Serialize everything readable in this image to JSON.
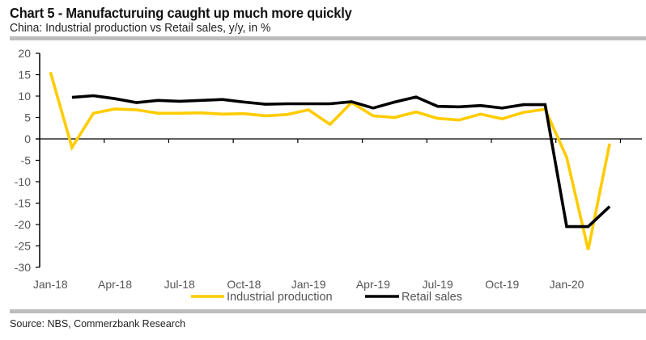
{
  "header": {
    "title": "Chart 5 - Manufacturuing caught up much more quickly",
    "subtitle": "China: Industrial production vs Retail sales, y/y, in %"
  },
  "footer": {
    "source": "Source: NBS, Commerzbank Research"
  },
  "chart_data": {
    "type": "line",
    "title": "Chart 5 - Manufacturuing caught up much more quickly",
    "subtitle": "China: Industrial production vs Retail sales, y/y, in %",
    "xlabel": "",
    "ylabel": "",
    "ylim": [
      -30,
      20
    ],
    "yticks": [
      20,
      15,
      10,
      5,
      0,
      -5,
      -10,
      -15,
      -20,
      -25,
      -30
    ],
    "x": [
      "Jan-18",
      "Feb-18",
      "Mar-18",
      "Apr-18",
      "May-18",
      "Jun-18",
      "Jul-18",
      "Aug-18",
      "Sep-18",
      "Oct-18",
      "Nov-18",
      "Dec-18",
      "Jan-19",
      "Feb-19",
      "Mar-19",
      "Apr-19",
      "May-19",
      "Jun-19",
      "Jul-19",
      "Aug-19",
      "Sep-19",
      "Oct-19",
      "Nov-19",
      "Dec-19",
      "Jan-20",
      "Feb-20",
      "Mar-20",
      "Apr-20"
    ],
    "xtick_labels": [
      {
        "index": 0,
        "label": "Jan-18"
      },
      {
        "index": 3,
        "label": "Apr-18"
      },
      {
        "index": 6,
        "label": "Jul-18"
      },
      {
        "index": 9,
        "label": "Oct-18"
      },
      {
        "index": 12,
        "label": "Jan-19"
      },
      {
        "index": 15,
        "label": "Apr-19"
      },
      {
        "index": 18,
        "label": "Jul-19"
      },
      {
        "index": 21,
        "label": "Oct-19"
      },
      {
        "index": 24,
        "label": "Jan-20"
      }
    ],
    "grid": false,
    "legend": "bottom-center",
    "series": [
      {
        "name": "Industrial production",
        "color": "#FFCC00",
        "values": [
          15.6,
          -2.0,
          6.0,
          7.0,
          6.8,
          6.0,
          6.0,
          6.1,
          5.8,
          5.9,
          5.4,
          5.7,
          6.8,
          3.4,
          8.5,
          5.4,
          5.0,
          6.3,
          4.8,
          4.4,
          5.8,
          4.7,
          6.2,
          6.9,
          -4.3,
          -25.9,
          -1.1,
          null
        ]
      },
      {
        "name": "Retail sales",
        "color": "#000000",
        "values": [
          null,
          9.7,
          10.1,
          9.4,
          8.5,
          9.0,
          8.8,
          9.0,
          9.2,
          8.6,
          8.1,
          8.2,
          8.2,
          8.2,
          8.7,
          7.2,
          8.6,
          9.8,
          7.6,
          7.5,
          7.8,
          7.2,
          8.0,
          8.0,
          -20.5,
          -20.5,
          -15.8,
          null
        ]
      }
    ]
  }
}
